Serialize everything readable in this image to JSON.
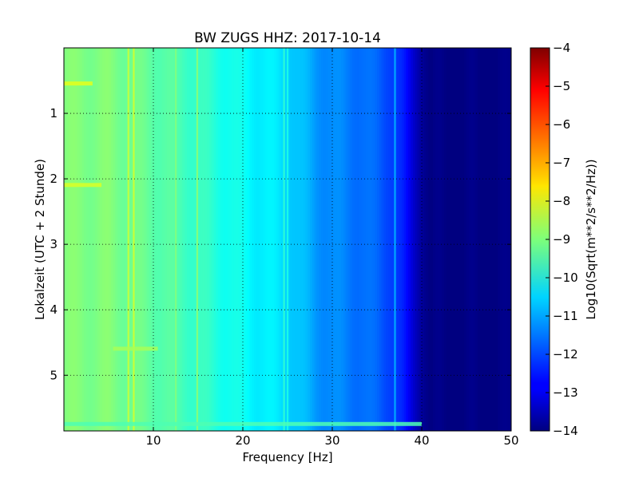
{
  "chart_data": {
    "type": "heatmap",
    "title": "BW ZUGS HHZ: 2017-10-14",
    "xlabel": "Frequency [Hz]",
    "ylabel": "Lokalzeit (UTC + 2 Stunde)",
    "xlim": [
      0,
      50
    ],
    "ylim": [
      5.85,
      0.0
    ],
    "x_ticks": [
      10,
      20,
      30,
      40,
      50
    ],
    "y_ticks": [
      1,
      2,
      3,
      4,
      5
    ],
    "grid": true,
    "colormap": "jet",
    "colorbar": {
      "label": "Log10(Sqrt(m**2/s**2/Hz))",
      "range": [
        -14,
        -4
      ],
      "ticks": [
        -4,
        -5,
        -6,
        -7,
        -8,
        -9,
        -10,
        -11,
        -12,
        -13,
        -14
      ]
    },
    "spectrum_profile": {
      "frequency_hz": [
        0,
        5,
        10,
        15,
        20,
        25,
        28,
        30,
        33,
        35,
        37,
        38,
        39,
        40,
        41,
        45,
        50
      ],
      "log10_amplitude": [
        -9.0,
        -9.0,
        -9.3,
        -9.7,
        -10.2,
        -10.6,
        -11.2,
        -11.4,
        -11.6,
        -11.8,
        -12.1,
        -12.6,
        -13.2,
        -13.6,
        -14,
        -14,
        -14
      ]
    },
    "spectral_lines": [
      {
        "frequency_hz": 7.2,
        "log10_amplitude": -8.3
      },
      {
        "frequency_hz": 7.8,
        "log10_amplitude": -8.2
      },
      {
        "frequency_hz": 12.5,
        "log10_amplitude": -9.0
      },
      {
        "frequency_hz": 14.9,
        "log10_amplitude": -8.9
      },
      {
        "frequency_hz": 24.6,
        "log10_amplitude": -9.8
      },
      {
        "frequency_hz": 25.0,
        "log10_amplitude": -10.0
      },
      {
        "frequency_hz": 37.0,
        "log10_amplitude": -11.0
      }
    ],
    "events": [
      {
        "time_h": 0.55,
        "freq_range_hz": [
          0,
          3.2
        ],
        "log10_amplitude": -8.0
      },
      {
        "time_h": 2.1,
        "freq_range_hz": [
          0,
          4.2
        ],
        "log10_amplitude": -8.1
      },
      {
        "time_h": 4.6,
        "freq_range_hz": [
          5.5,
          10.5
        ],
        "log10_amplitude": -8.6
      },
      {
        "time_h": 5.75,
        "freq_range_hz": [
          0,
          40
        ],
        "log10_amplitude": -9.5
      }
    ]
  }
}
